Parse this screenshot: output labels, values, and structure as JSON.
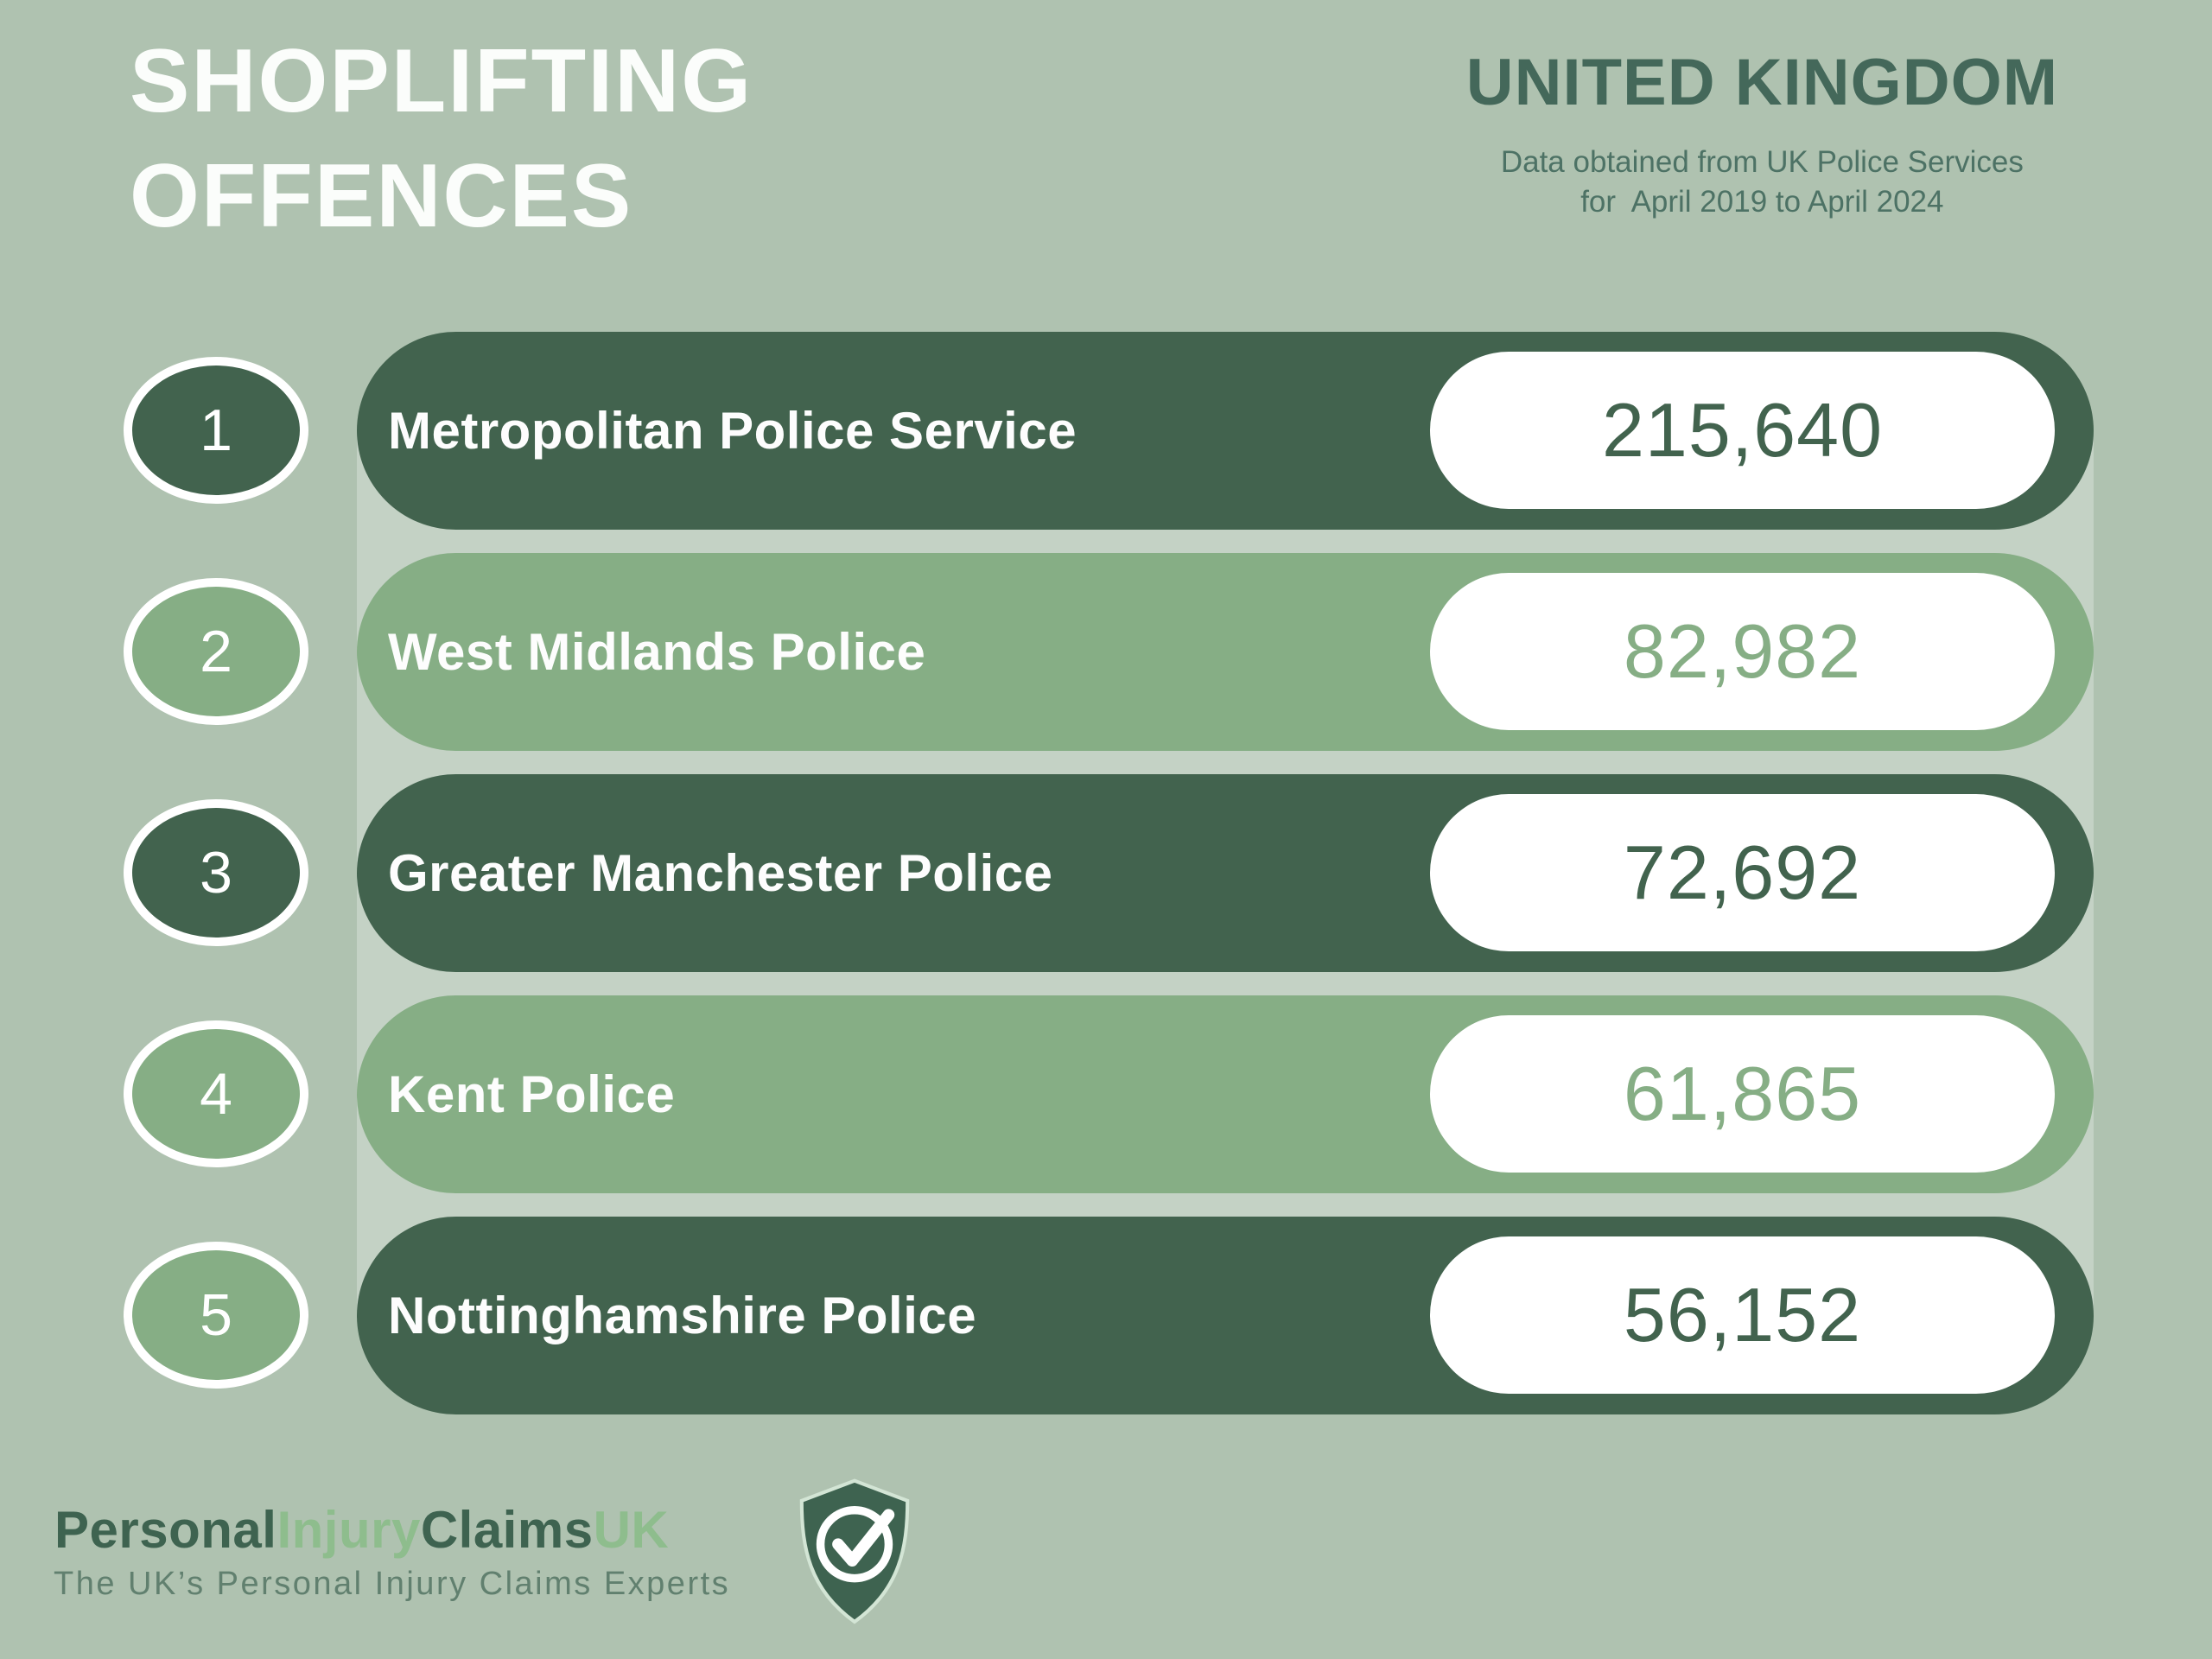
{
  "header": {
    "title_line1": "SHOPLIFTING",
    "title_line2": "OFFENCES",
    "region": "UNITED KINGDOM",
    "subtitle_line1": "Data obtained from UK Police Services",
    "subtitle_line2": "for  April 2019 to April 2024"
  },
  "chart_data": {
    "type": "bar",
    "title": "Shoplifting Offences",
    "region": "United Kingdom",
    "source_note": "Data obtained from UK Police Services for April 2019 to April 2024",
    "categories": [
      "Metropolitan Police Service",
      "West Midlands Police",
      "Greater Manchester Police",
      "Kent Police",
      "Nottinghamshire Police"
    ],
    "values": [
      215640,
      82982,
      72692,
      61865,
      56152
    ],
    "value_labels": [
      "215,640",
      "82,982",
      "72,692",
      "61,865",
      "56,152"
    ],
    "ranks": [
      1,
      2,
      3,
      4,
      5
    ],
    "legend_position": "none",
    "grid": false
  },
  "rows": [
    {
      "rank": "1",
      "label": "Metropolitan Police Service",
      "value": "215,640",
      "tone": "dark",
      "circle_tone": "dark"
    },
    {
      "rank": "2",
      "label": "West Midlands Police",
      "value": "82,982",
      "tone": "light",
      "circle_tone": "light"
    },
    {
      "rank": "3",
      "label": "Greater Manchester Police",
      "value": "72,692",
      "tone": "dark",
      "circle_tone": "dark"
    },
    {
      "rank": "4",
      "label": "Kent Police",
      "value": "61,865",
      "tone": "light",
      "circle_tone": "light"
    },
    {
      "rank": "5",
      "label": "Nottinghamshire Police",
      "value": "56,152",
      "tone": "dark",
      "circle_tone": "light"
    }
  ],
  "footer": {
    "brand_segments": [
      {
        "text": "Personal",
        "tone": "dark"
      },
      {
        "text": "Injury",
        "tone": "light"
      },
      {
        "text": "Claims",
        "tone": "dark"
      },
      {
        "text": "UK",
        "tone": "light"
      }
    ],
    "tagline": "The UK’s Personal Injury Claims Experts",
    "logo_icon": "shield-check-icon"
  },
  "colors": {
    "background": "#afc2b0",
    "track": "#c4d2c5",
    "dark_green": "#42634e",
    "light_green": "#86ae85",
    "pill_white": "#ffffff",
    "title_white": "#fbfdfb",
    "heading_green": "#44685a",
    "subtitle_green": "#4d7265",
    "tagline_gray_green": "#61806f",
    "brand_dark": "#3e6350",
    "brand_light": "#8ebd8d"
  }
}
